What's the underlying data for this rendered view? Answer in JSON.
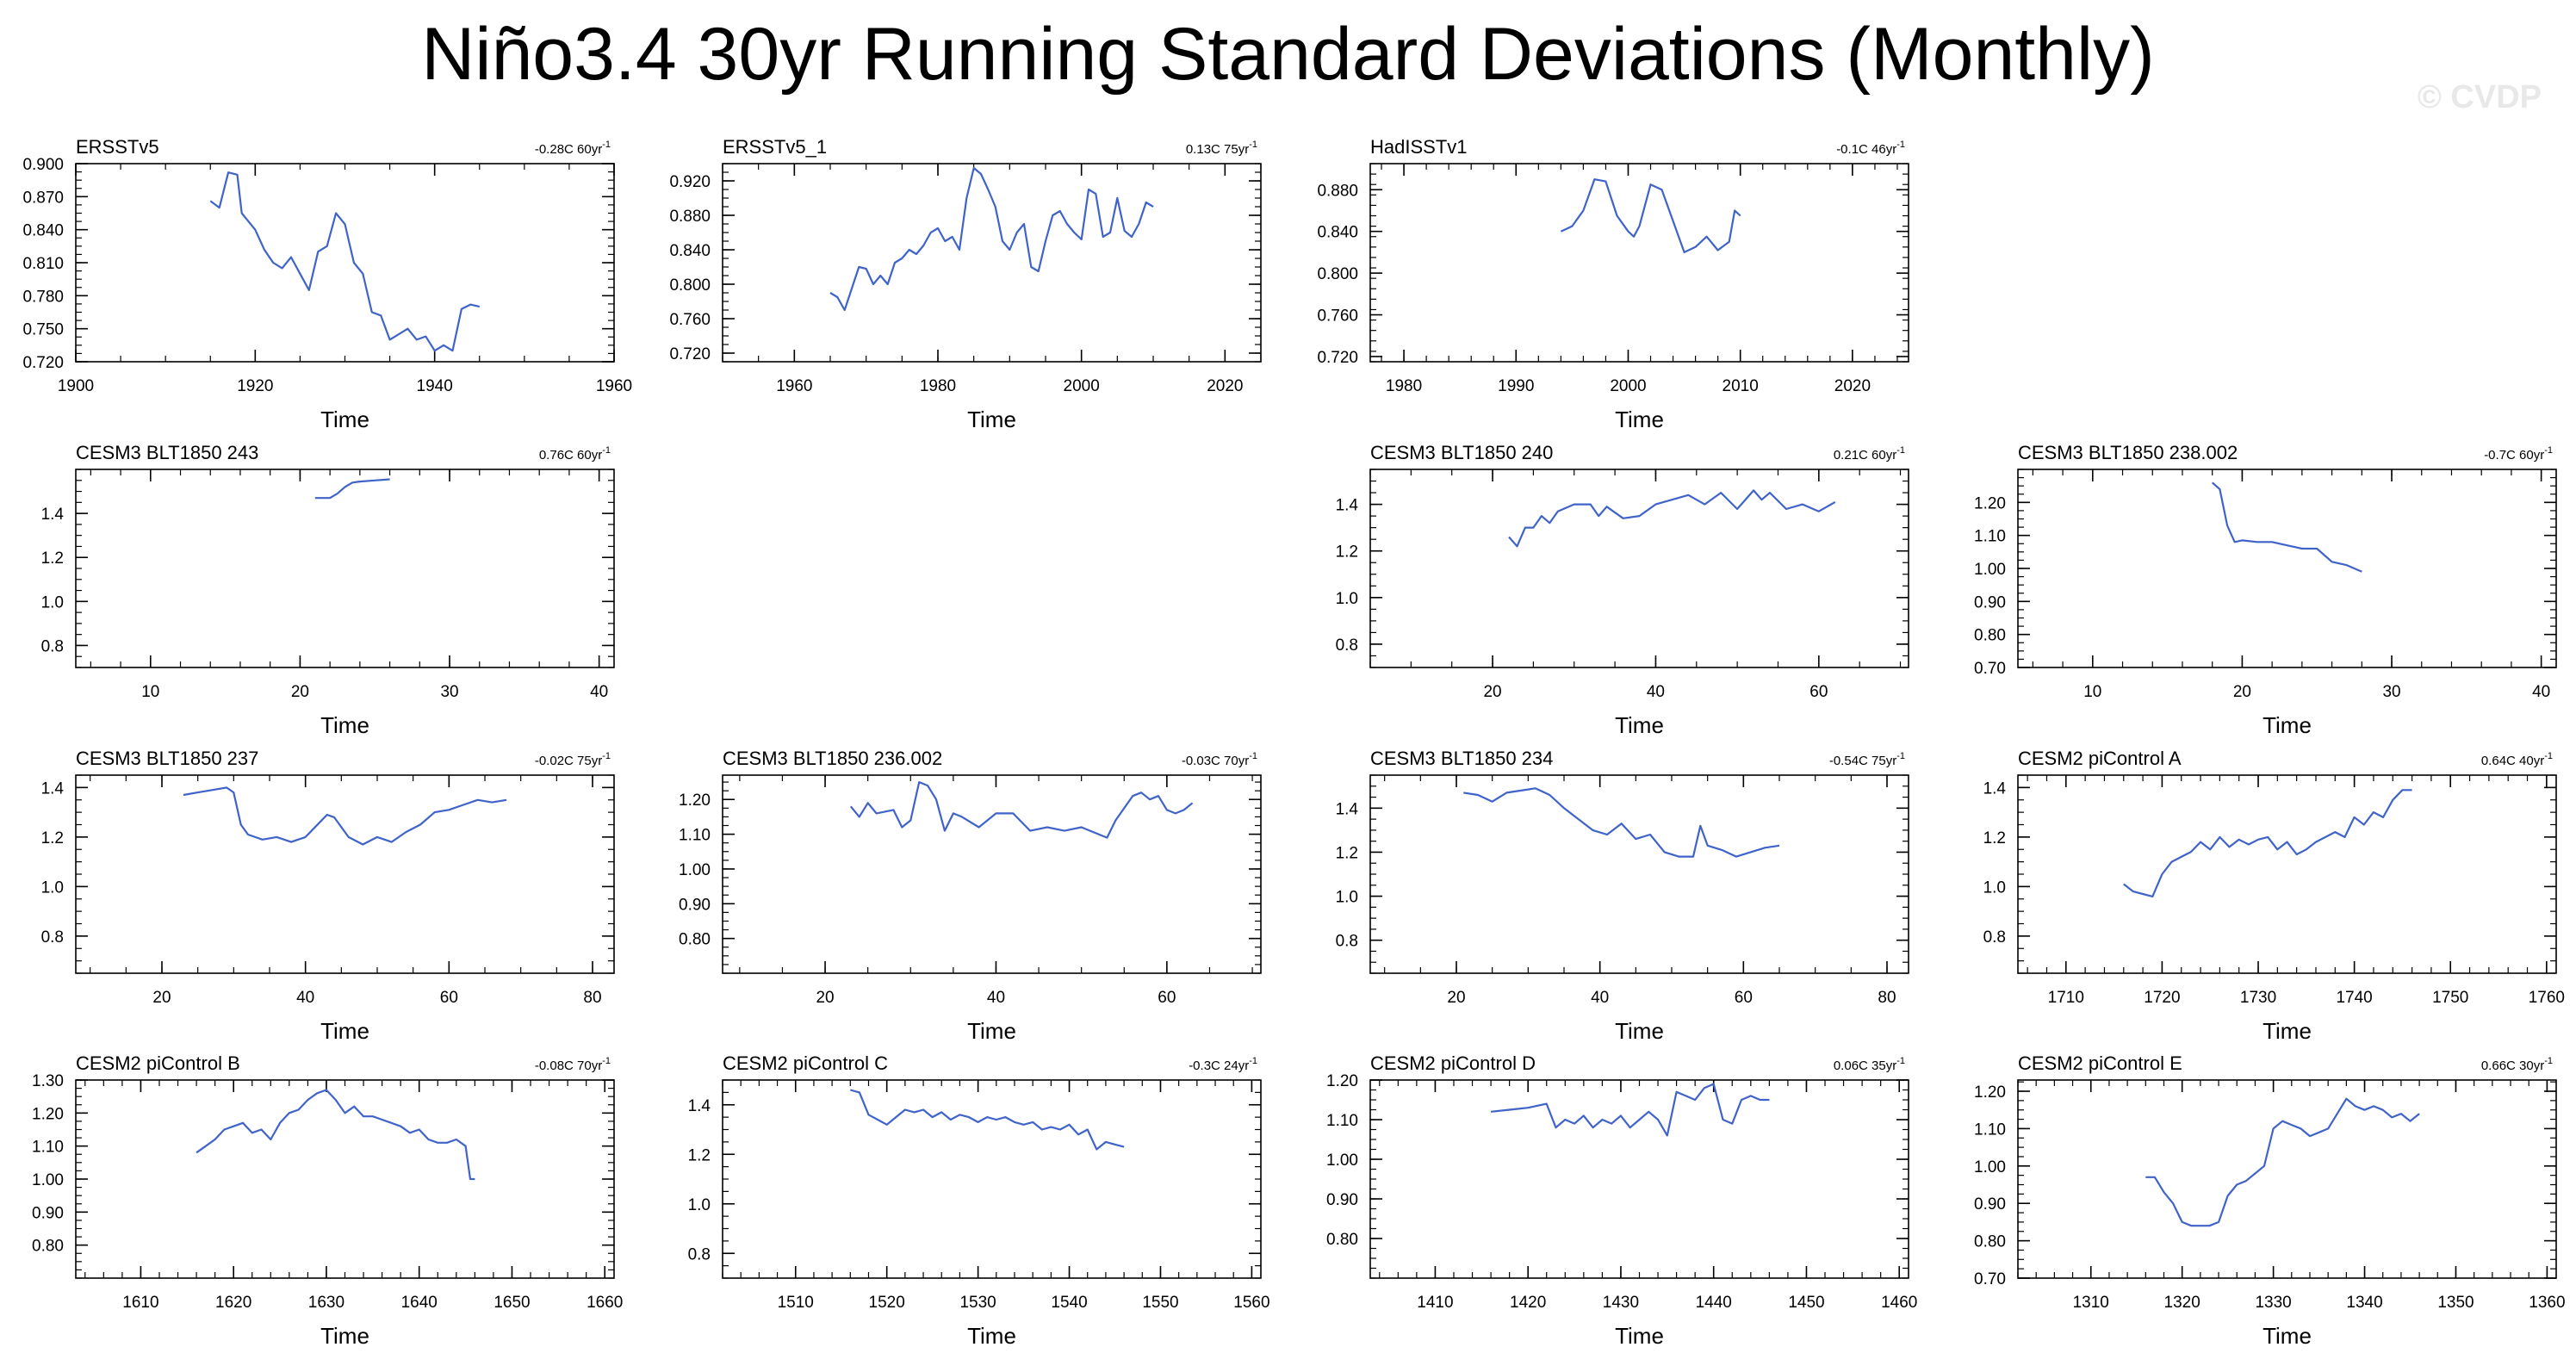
{
  "title": "Niño3.4 30yr Running Standard Deviations (Monthly)",
  "watermark": "© CVDP",
  "colors": {
    "line": "#3f63c8",
    "axis": "#000000",
    "watermark": "#e8e8e8"
  },
  "chart_data": [
    {
      "type": "line",
      "title": "ERSSTv5",
      "trend": "-0.28C 60yr",
      "xlabel": "Time",
      "xlim": [
        1900,
        1960
      ],
      "ylim": [
        0.72,
        0.9
      ],
      "xticks": [
        1900,
        1920,
        1940,
        1960
      ],
      "yticks": [
        0.72,
        0.75,
        0.78,
        0.81,
        0.84,
        0.87,
        0.9
      ],
      "ydec": 3,
      "x": [
        1915,
        1916,
        1917,
        1918,
        1918.5,
        1919,
        1920,
        1921,
        1922,
        1923,
        1924,
        1925,
        1926,
        1927,
        1928,
        1929,
        1930,
        1931,
        1932,
        1933,
        1934,
        1935,
        1936,
        1937,
        1938,
        1939,
        1940,
        1941,
        1942,
        1943,
        1944,
        1945
      ],
      "y": [
        0.866,
        0.86,
        0.892,
        0.89,
        0.855,
        0.85,
        0.84,
        0.822,
        0.81,
        0.805,
        0.815,
        0.8,
        0.785,
        0.82,
        0.825,
        0.855,
        0.845,
        0.81,
        0.8,
        0.765,
        0.762,
        0.74,
        0.745,
        0.75,
        0.74,
        0.743,
        0.73,
        0.735,
        0.73,
        0.768,
        0.772,
        0.77
      ]
    },
    {
      "type": "line",
      "title": "ERSSTv5_1",
      "trend": "0.13C 75yr",
      "xlabel": "Time",
      "xlim": [
        1950,
        2025
      ],
      "ylim": [
        0.71,
        0.94
      ],
      "xticks": [
        1960,
        1980,
        2000,
        2020
      ],
      "yticks": [
        0.72,
        0.76,
        0.8,
        0.84,
        0.88,
        0.92
      ],
      "ydec": 3,
      "x": [
        1965,
        1966,
        1967,
        1968,
        1969,
        1970,
        1971,
        1972,
        1973,
        1974,
        1975,
        1976,
        1977,
        1978,
        1979,
        1980,
        1981,
        1982,
        1983,
        1984,
        1985,
        1986,
        1987,
        1988,
        1989,
        1990,
        1991,
        1992,
        1993,
        1994,
        1995,
        1996,
        1997,
        1998,
        1999,
        2000,
        2001,
        2002,
        2003,
        2004,
        2005,
        2006,
        2007,
        2008,
        2009,
        2010
      ],
      "y": [
        0.79,
        0.785,
        0.77,
        0.795,
        0.82,
        0.818,
        0.8,
        0.81,
        0.8,
        0.825,
        0.83,
        0.84,
        0.835,
        0.845,
        0.86,
        0.865,
        0.85,
        0.855,
        0.84,
        0.9,
        0.935,
        0.928,
        0.91,
        0.89,
        0.85,
        0.84,
        0.86,
        0.87,
        0.82,
        0.815,
        0.85,
        0.88,
        0.885,
        0.87,
        0.86,
        0.852,
        0.91,
        0.905,
        0.855,
        0.86,
        0.9,
        0.862,
        0.855,
        0.87,
        0.895,
        0.89
      ]
    },
    {
      "type": "line",
      "title": "HadISSTv1",
      "trend": "-0.1C 46yr",
      "xlabel": "Time",
      "xlim": [
        1977,
        2025
      ],
      "ylim": [
        0.715,
        0.905
      ],
      "xticks": [
        1980,
        1990,
        2000,
        2010,
        2020
      ],
      "yticks": [
        0.72,
        0.76,
        0.8,
        0.84,
        0.88
      ],
      "ydec": 3,
      "x": [
        1994,
        1995,
        1996,
        1997,
        1998,
        1999,
        2000,
        2000.5,
        2001,
        2002,
        2003,
        2004,
        2005,
        2006,
        2007,
        2008,
        2009,
        2009.5,
        2010
      ],
      "y": [
        0.84,
        0.845,
        0.86,
        0.89,
        0.888,
        0.855,
        0.84,
        0.835,
        0.845,
        0.885,
        0.88,
        0.85,
        0.82,
        0.825,
        0.835,
        0.822,
        0.83,
        0.86,
        0.855
      ]
    },
    null,
    {
      "type": "line",
      "title": "CESM3 BLT1850 243",
      "trend": "0.76C 60yr",
      "xlabel": "Time",
      "xlim": [
        5,
        41
      ],
      "ylim": [
        0.7,
        1.6
      ],
      "xticks": [
        10,
        20,
        30,
        40
      ],
      "yticks": [
        0.8,
        1.0,
        1.2,
        1.4
      ],
      "ydec": 1,
      "x": [
        21,
        22,
        22.5,
        23,
        23.5,
        24,
        25,
        26
      ],
      "y": [
        1.47,
        1.47,
        1.49,
        1.52,
        1.54,
        1.545,
        1.55,
        1.555
      ]
    },
    null,
    {
      "type": "line",
      "title": "CESM3 BLT1850 240",
      "trend": "0.21C 60yr",
      "xlabel": "Time",
      "xlim": [
        5,
        71
      ],
      "ylim": [
        0.7,
        1.55
      ],
      "xticks": [
        20,
        40,
        60
      ],
      "yticks": [
        0.8,
        1.0,
        1.2,
        1.4
      ],
      "ydec": 1,
      "x": [
        22,
        23,
        24,
        25,
        26,
        27,
        28,
        30,
        32,
        33,
        34,
        36,
        38,
        40,
        42,
        44,
        46,
        48,
        50,
        52,
        53,
        54,
        56,
        58,
        60,
        62
      ],
      "y": [
        1.26,
        1.22,
        1.3,
        1.3,
        1.35,
        1.32,
        1.37,
        1.4,
        1.4,
        1.35,
        1.39,
        1.34,
        1.35,
        1.4,
        1.42,
        1.44,
        1.4,
        1.45,
        1.38,
        1.46,
        1.42,
        1.45,
        1.38,
        1.4,
        1.37,
        1.41
      ]
    },
    {
      "type": "line",
      "title": "CESM3 BLT1850 238.002",
      "trend": "-0.7C 60yr",
      "xlabel": "Time",
      "xlim": [
        5,
        41
      ],
      "ylim": [
        0.7,
        1.3
      ],
      "xticks": [
        10,
        20,
        30,
        40
      ],
      "yticks": [
        0.7,
        0.8,
        0.9,
        1.0,
        1.1,
        1.2
      ],
      "ydec": 2,
      "x": [
        18,
        18.5,
        19,
        19.5,
        20,
        21,
        22,
        23,
        24,
        25,
        26,
        27,
        28
      ],
      "y": [
        1.26,
        1.24,
        1.13,
        1.08,
        1.085,
        1.08,
        1.08,
        1.07,
        1.06,
        1.06,
        1.02,
        1.01,
        0.99
      ]
    },
    {
      "type": "line",
      "title": "CESM3 BLT1850 237",
      "trend": "-0.02C 75yr",
      "xlabel": "Time",
      "xlim": [
        8,
        83
      ],
      "ylim": [
        0.65,
        1.45
      ],
      "xticks": [
        20,
        40,
        60,
        80
      ],
      "yticks": [
        0.8,
        1.0,
        1.2,
        1.4
      ],
      "ydec": 1,
      "x": [
        23,
        25,
        27,
        29,
        30,
        31,
        32,
        34,
        36,
        38,
        40,
        41,
        43,
        44,
        46,
        48,
        50,
        52,
        54,
        56,
        58,
        60,
        62,
        64,
        66,
        68
      ],
      "y": [
        1.37,
        1.38,
        1.39,
        1.4,
        1.38,
        1.25,
        1.21,
        1.19,
        1.2,
        1.18,
        1.2,
        1.23,
        1.29,
        1.28,
        1.2,
        1.17,
        1.2,
        1.18,
        1.22,
        1.25,
        1.3,
        1.31,
        1.33,
        1.35,
        1.34,
        1.35
      ]
    },
    {
      "type": "line",
      "title": "CESM3 BLT1850 236.002",
      "trend": "-0.03C 70yr",
      "xlabel": "Time",
      "xlim": [
        8,
        71
      ],
      "ylim": [
        0.7,
        1.27
      ],
      "xticks": [
        20,
        40,
        60
      ],
      "yticks": [
        0.8,
        0.9,
        1.0,
        1.1,
        1.2
      ],
      "ydec": 2,
      "x": [
        23,
        24,
        25,
        26,
        28,
        29,
        30,
        31,
        32,
        33,
        34,
        35,
        36,
        38,
        40,
        42,
        44,
        46,
        48,
        50,
        52,
        53,
        54,
        56,
        57,
        58,
        59,
        60,
        61,
        62,
        63
      ],
      "y": [
        1.18,
        1.15,
        1.19,
        1.16,
        1.17,
        1.12,
        1.14,
        1.25,
        1.24,
        1.2,
        1.11,
        1.16,
        1.15,
        1.12,
        1.16,
        1.16,
        1.11,
        1.12,
        1.11,
        1.12,
        1.1,
        1.09,
        1.14,
        1.21,
        1.22,
        1.2,
        1.21,
        1.17,
        1.16,
        1.17,
        1.19
      ]
    },
    {
      "type": "line",
      "title": "CESM3 BLT1850 234",
      "trend": "-0.54C 75yr",
      "xlabel": "Time",
      "xlim": [
        8,
        83
      ],
      "ylim": [
        0.65,
        1.55
      ],
      "xticks": [
        20,
        40,
        60,
        80
      ],
      "yticks": [
        0.8,
        1.0,
        1.2,
        1.4
      ],
      "ydec": 1,
      "x": [
        21,
        23,
        25,
        27,
        29,
        31,
        33,
        35,
        37,
        39,
        41,
        43,
        45,
        47,
        49,
        51,
        53,
        54,
        55,
        57,
        59,
        61,
        63,
        65
      ],
      "y": [
        1.47,
        1.46,
        1.43,
        1.47,
        1.48,
        1.49,
        1.46,
        1.4,
        1.35,
        1.3,
        1.28,
        1.33,
        1.26,
        1.28,
        1.2,
        1.18,
        1.18,
        1.32,
        1.23,
        1.21,
        1.18,
        1.2,
        1.22,
        1.23
      ]
    },
    {
      "type": "line",
      "title": "CESM2 piControl A",
      "trend": "0.64C 40yr",
      "xlabel": "Time",
      "xlim": [
        1705,
        1761
      ],
      "ylim": [
        0.65,
        1.45
      ],
      "xticks": [
        1710,
        1720,
        1730,
        1740,
        1750,
        1760
      ],
      "yticks": [
        0.8,
        1.0,
        1.2,
        1.4
      ],
      "ydec": 1,
      "x": [
        1716,
        1717,
        1718,
        1719,
        1720,
        1721,
        1722,
        1723,
        1724,
        1725,
        1726,
        1727,
        1728,
        1729,
        1730,
        1731,
        1732,
        1733,
        1734,
        1735,
        1736,
        1737,
        1738,
        1739,
        1740,
        1741,
        1742,
        1743,
        1744,
        1745,
        1746
      ],
      "y": [
        1.01,
        0.98,
        0.97,
        0.96,
        1.05,
        1.1,
        1.12,
        1.14,
        1.18,
        1.15,
        1.2,
        1.16,
        1.19,
        1.17,
        1.19,
        1.2,
        1.15,
        1.18,
        1.13,
        1.15,
        1.18,
        1.2,
        1.22,
        1.2,
        1.28,
        1.25,
        1.3,
        1.28,
        1.35,
        1.39,
        1.39
      ]
    },
    {
      "type": "line",
      "title": "CESM2 piControl B",
      "trend": "-0.08C 70yr",
      "xlabel": "Time",
      "xlim": [
        1603,
        1661
      ],
      "ylim": [
        0.7,
        1.3
      ],
      "xticks": [
        1610,
        1620,
        1630,
        1640,
        1650,
        1660
      ],
      "yticks": [
        0.8,
        0.9,
        1.0,
        1.1,
        1.2,
        1.3
      ],
      "ydec": 2,
      "x": [
        1616,
        1617,
        1618,
        1619,
        1620,
        1621,
        1622,
        1623,
        1624,
        1625,
        1626,
        1627,
        1628,
        1629,
        1630,
        1631,
        1632,
        1633,
        1634,
        1635,
        1636,
        1637,
        1638,
        1639,
        1640,
        1641,
        1642,
        1643,
        1644,
        1645,
        1645.5,
        1646
      ],
      "y": [
        1.08,
        1.1,
        1.12,
        1.15,
        1.16,
        1.17,
        1.14,
        1.15,
        1.12,
        1.17,
        1.2,
        1.21,
        1.24,
        1.26,
        1.27,
        1.24,
        1.2,
        1.22,
        1.19,
        1.19,
        1.18,
        1.17,
        1.16,
        1.14,
        1.15,
        1.12,
        1.11,
        1.11,
        1.12,
        1.1,
        1.0,
        1.0
      ]
    },
    {
      "type": "line",
      "title": "CESM2 piControl C",
      "trend": "-0.3C 24yr",
      "xlabel": "Time",
      "xlim": [
        1502,
        1561
      ],
      "ylim": [
        0.7,
        1.5
      ],
      "xticks": [
        1510,
        1520,
        1530,
        1540,
        1550,
        1560
      ],
      "yticks": [
        0.8,
        1.0,
        1.2,
        1.4
      ],
      "ydec": 1,
      "x": [
        1516,
        1517,
        1518,
        1519,
        1520,
        1521,
        1522,
        1523,
        1524,
        1525,
        1526,
        1527,
        1528,
        1529,
        1530,
        1531,
        1532,
        1533,
        1534,
        1535,
        1536,
        1537,
        1538,
        1539,
        1540,
        1541,
        1542,
        1543,
        1544,
        1545,
        1546
      ],
      "y": [
        1.46,
        1.45,
        1.36,
        1.34,
        1.32,
        1.35,
        1.38,
        1.37,
        1.38,
        1.35,
        1.37,
        1.34,
        1.36,
        1.35,
        1.33,
        1.35,
        1.34,
        1.35,
        1.33,
        1.32,
        1.33,
        1.3,
        1.31,
        1.3,
        1.32,
        1.28,
        1.3,
        1.22,
        1.25,
        1.24,
        1.23
      ]
    },
    {
      "type": "line",
      "title": "CESM2 piControl D",
      "trend": "0.06C 35yr",
      "xlabel": "Time",
      "xlim": [
        1403,
        1461
      ],
      "ylim": [
        0.7,
        1.2
      ],
      "xticks": [
        1410,
        1420,
        1430,
        1440,
        1450,
        1460
      ],
      "yticks": [
        0.8,
        0.9,
        1.0,
        1.1,
        1.2
      ],
      "ydec": 2,
      "x": [
        1416,
        1418,
        1420,
        1422,
        1423,
        1424,
        1425,
        1426,
        1427,
        1428,
        1429,
        1430,
        1431,
        1432,
        1433,
        1434,
        1435,
        1436,
        1437,
        1438,
        1439,
        1440,
        1441,
        1442,
        1443,
        1444,
        1445,
        1446
      ],
      "y": [
        1.12,
        1.125,
        1.13,
        1.14,
        1.08,
        1.1,
        1.09,
        1.11,
        1.08,
        1.1,
        1.09,
        1.11,
        1.08,
        1.1,
        1.12,
        1.1,
        1.06,
        1.17,
        1.16,
        1.15,
        1.18,
        1.19,
        1.1,
        1.09,
        1.15,
        1.16,
        1.15,
        1.15
      ]
    },
    {
      "type": "line",
      "title": "CESM2 piControl E",
      "trend": "0.66C 30yr",
      "xlabel": "Time",
      "xlim": [
        1302,
        1361
      ],
      "ylim": [
        0.7,
        1.23
      ],
      "xticks": [
        1310,
        1320,
        1330,
        1340,
        1350,
        1360
      ],
      "yticks": [
        0.7,
        0.8,
        0.9,
        1.0,
        1.1,
        1.2
      ],
      "ydec": 2,
      "x": [
        1316,
        1317,
        1318,
        1319,
        1320,
        1321,
        1322,
        1323,
        1324,
        1325,
        1326,
        1327,
        1328,
        1329,
        1330,
        1331,
        1332,
        1333,
        1334,
        1335,
        1336,
        1337,
        1338,
        1339,
        1340,
        1341,
        1342,
        1343,
        1344,
        1345,
        1346
      ],
      "y": [
        0.97,
        0.97,
        0.93,
        0.9,
        0.85,
        0.84,
        0.84,
        0.84,
        0.85,
        0.92,
        0.95,
        0.96,
        0.98,
        1.0,
        1.1,
        1.12,
        1.11,
        1.1,
        1.08,
        1.09,
        1.1,
        1.14,
        1.18,
        1.16,
        1.15,
        1.16,
        1.15,
        1.13,
        1.14,
        1.12,
        1.14
      ]
    }
  ]
}
